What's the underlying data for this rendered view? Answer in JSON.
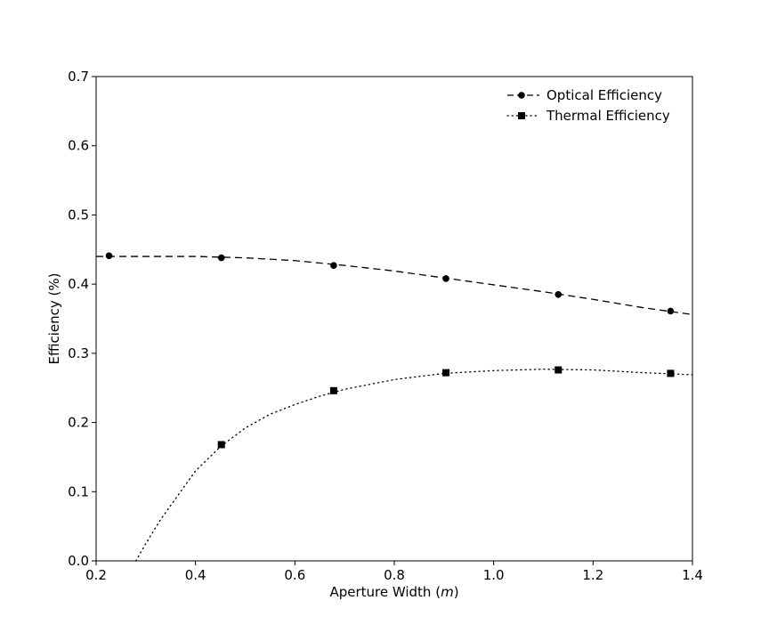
{
  "chart_data": {
    "type": "line",
    "title": "",
    "xlabel_main": "Aperture Width (",
    "xlabel_unit": "m",
    "xlabel_close": ")",
    "ylabel": "Efficiency (%)",
    "xlim": [
      0.2,
      1.4
    ],
    "ylim": [
      0.0,
      0.7
    ],
    "x_ticks": [
      "0.2",
      "0.4",
      "0.6",
      "0.8",
      "1.0",
      "1.2",
      "1.4"
    ],
    "y_ticks": [
      "0.0",
      "0.1",
      "0.2",
      "0.3",
      "0.4",
      "0.5",
      "0.6",
      "0.7"
    ],
    "grid": false,
    "legend_position": "top-right",
    "series": [
      {
        "name": "Optical Efficiency",
        "marker": "circle",
        "line_style": "dashed",
        "color": "#000000",
        "points": [
          {
            "x": 0.226,
            "y": 0.441
          },
          {
            "x": 0.452,
            "y": 0.438
          },
          {
            "x": 0.678,
            "y": 0.427
          },
          {
            "x": 0.904,
            "y": 0.408
          },
          {
            "x": 1.13,
            "y": 0.385
          },
          {
            "x": 1.356,
            "y": 0.361
          }
        ],
        "curve": [
          {
            "x": 0.2,
            "y": 0.44
          },
          {
            "x": 0.4,
            "y": 0.44
          },
          {
            "x": 0.5,
            "y": 0.438
          },
          {
            "x": 0.6,
            "y": 0.434
          },
          {
            "x": 0.7,
            "y": 0.427
          },
          {
            "x": 0.8,
            "y": 0.419
          },
          {
            "x": 0.9,
            "y": 0.409
          },
          {
            "x": 1.0,
            "y": 0.399
          },
          {
            "x": 1.1,
            "y": 0.389
          },
          {
            "x": 1.2,
            "y": 0.378
          },
          {
            "x": 1.3,
            "y": 0.366
          },
          {
            "x": 1.4,
            "y": 0.356
          }
        ]
      },
      {
        "name": "Thermal Efficiency",
        "marker": "square",
        "line_style": "dotted",
        "color": "#000000",
        "points": [
          {
            "x": 0.452,
            "y": 0.168
          },
          {
            "x": 0.678,
            "y": 0.246
          },
          {
            "x": 0.904,
            "y": 0.272
          },
          {
            "x": 1.13,
            "y": 0.276
          },
          {
            "x": 1.356,
            "y": 0.271
          }
        ],
        "curve": [
          {
            "x": 0.28,
            "y": 0.0
          },
          {
            "x": 0.3,
            "y": 0.025
          },
          {
            "x": 0.33,
            "y": 0.06
          },
          {
            "x": 0.36,
            "y": 0.09
          },
          {
            "x": 0.4,
            "y": 0.13
          },
          {
            "x": 0.45,
            "y": 0.165
          },
          {
            "x": 0.5,
            "y": 0.192
          },
          {
            "x": 0.55,
            "y": 0.212
          },
          {
            "x": 0.6,
            "y": 0.226
          },
          {
            "x": 0.65,
            "y": 0.238
          },
          {
            "x": 0.7,
            "y": 0.248
          },
          {
            "x": 0.8,
            "y": 0.262
          },
          {
            "x": 0.9,
            "y": 0.271
          },
          {
            "x": 1.0,
            "y": 0.275
          },
          {
            "x": 1.1,
            "y": 0.277
          },
          {
            "x": 1.2,
            "y": 0.276
          },
          {
            "x": 1.3,
            "y": 0.272
          },
          {
            "x": 1.4,
            "y": 0.269
          }
        ]
      }
    ]
  }
}
